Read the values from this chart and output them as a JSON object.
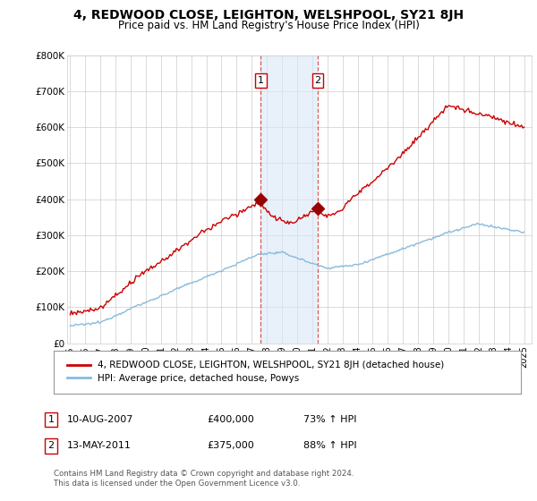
{
  "title": "4, REDWOOD CLOSE, LEIGHTON, WELSHPOOL, SY21 8JH",
  "subtitle": "Price paid vs. HM Land Registry's House Price Index (HPI)",
  "title_fontsize": 10,
  "subtitle_fontsize": 8.5,
  "ylim": [
    0,
    800000
  ],
  "yticks": [
    0,
    100000,
    200000,
    300000,
    400000,
    500000,
    600000,
    700000,
    800000
  ],
  "ytick_labels": [
    "£0",
    "£100K",
    "£200K",
    "£300K",
    "£400K",
    "£500K",
    "£600K",
    "£700K",
    "£800K"
  ],
  "background_color": "#ffffff",
  "plot_bg_color": "#ffffff",
  "grid_color": "#cccccc",
  "sale1_date": 2007.6,
  "sale1_price": 400000,
  "sale2_date": 2011.36,
  "sale2_price": 375000,
  "shade_color": "#dae8f7",
  "shade_alpha": 0.6,
  "red_line_color": "#cc0000",
  "blue_line_color": "#88bbdd",
  "marker_color": "#990000",
  "legend1_label": "4, REDWOOD CLOSE, LEIGHTON, WELSHPOOL, SY21 8JH (detached house)",
  "legend2_label": "HPI: Average price, detached house, Powys",
  "annotation1": "10-AUG-2007",
  "annotation1_price": "£400,000",
  "annotation1_hpi": "73% ↑ HPI",
  "annotation2": "13-MAY-2011",
  "annotation2_price": "£375,000",
  "annotation2_hpi": "88% ↑ HPI",
  "footer": "Contains HM Land Registry data © Crown copyright and database right 2024.\nThis data is licensed under the Open Government Licence v3.0.",
  "xmin": 1994.8,
  "xmax": 2025.5,
  "xticks": [
    1995,
    1996,
    1997,
    1998,
    1999,
    2000,
    2001,
    2002,
    2003,
    2004,
    2005,
    2006,
    2007,
    2008,
    2009,
    2010,
    2011,
    2012,
    2013,
    2014,
    2015,
    2016,
    2017,
    2018,
    2019,
    2020,
    2021,
    2022,
    2023,
    2024,
    2025
  ]
}
